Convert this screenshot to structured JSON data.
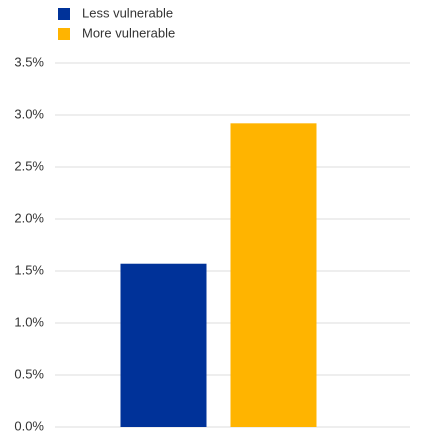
{
  "chart_data": {
    "type": "bar",
    "categories": [
      null
    ],
    "series": [
      {
        "name": "Less vulnerable",
        "color": "#003299",
        "values": [
          1.57
        ]
      },
      {
        "name": "More vulnerable",
        "color": "#ffb400",
        "values": [
          2.92
        ]
      }
    ],
    "ylim": [
      0,
      3.5
    ],
    "yticks": [
      {
        "value": 0,
        "label": "0.0%"
      },
      {
        "value": 0.5,
        "label": "0.5%"
      },
      {
        "value": 1,
        "label": "1.0%"
      },
      {
        "value": 1.5,
        "label": "1.5%"
      },
      {
        "value": 2,
        "label": "2.0%"
      },
      {
        "value": 2.5,
        "label": "2.5%"
      },
      {
        "value": 3,
        "label": "3.0%"
      },
      {
        "value": 3.5,
        "label": "3.5%"
      }
    ],
    "grid": true
  }
}
